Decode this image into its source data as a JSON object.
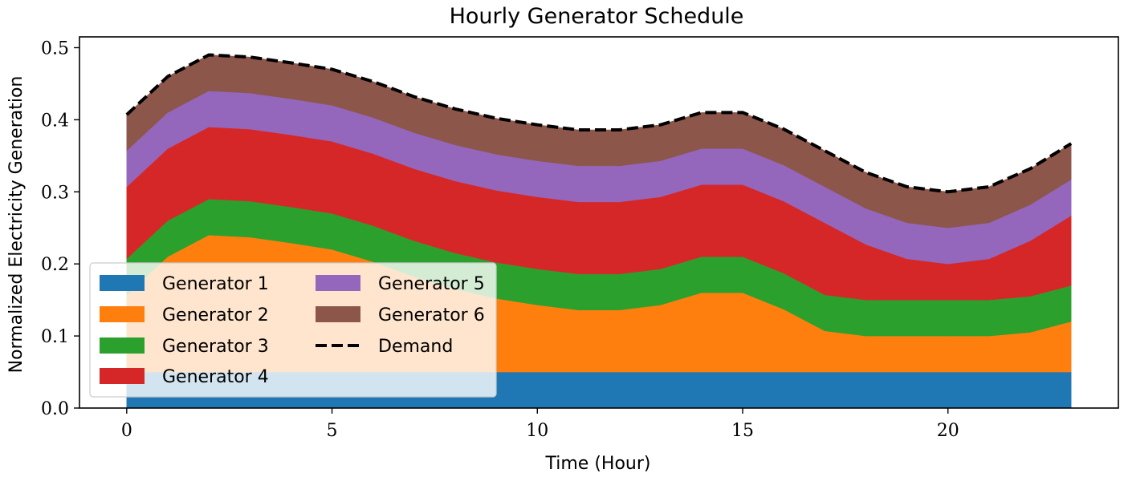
{
  "chart_data": {
    "type": "area",
    "title": "Hourly Generator Schedule",
    "xlabel": "Time (Hour)",
    "ylabel": "Normalized Electricity Generation",
    "xlim": [
      -1.15,
      24.15
    ],
    "ylim": [
      0,
      0.515
    ],
    "xticks": [
      0,
      5,
      10,
      15,
      20
    ],
    "xtick_labels": [
      "0",
      "5",
      "10",
      "15",
      "20"
    ],
    "yticks": [
      0.0,
      0.1,
      0.2,
      0.3,
      0.4,
      0.5
    ],
    "ytick_labels": [
      "0.0",
      "0.1",
      "0.2",
      "0.3",
      "0.4",
      "0.5"
    ],
    "grid": false,
    "legend_position": "lower-left",
    "stacked": true,
    "x": [
      0,
      1,
      2,
      3,
      4,
      5,
      6,
      7,
      8,
      9,
      10,
      11,
      12,
      13,
      14,
      15,
      16,
      17,
      18,
      19,
      20,
      21,
      22,
      23
    ],
    "series": [
      {
        "name": "Generator 1",
        "color": "#1f77b4",
        "values": [
          0.05,
          0.05,
          0.05,
          0.05,
          0.05,
          0.05,
          0.05,
          0.05,
          0.05,
          0.05,
          0.05,
          0.05,
          0.05,
          0.05,
          0.05,
          0.05,
          0.05,
          0.05,
          0.05,
          0.05,
          0.05,
          0.05,
          0.05,
          0.05
        ]
      },
      {
        "name": "Generator 2",
        "color": "#ff7f0e",
        "values": [
          0.107,
          0.16,
          0.19,
          0.187,
          0.179,
          0.17,
          0.153,
          0.132,
          0.115,
          0.102,
          0.093,
          0.086,
          0.086,
          0.093,
          0.11,
          0.11,
          0.087,
          0.057,
          0.05,
          0.05,
          0.05,
          0.05,
          0.055,
          0.07
        ]
      },
      {
        "name": "Generator 3",
        "color": "#2ca02c",
        "values": [
          0.05,
          0.05,
          0.05,
          0.05,
          0.05,
          0.05,
          0.05,
          0.05,
          0.05,
          0.05,
          0.05,
          0.05,
          0.05,
          0.05,
          0.05,
          0.05,
          0.05,
          0.05,
          0.05,
          0.05,
          0.05,
          0.05,
          0.05,
          0.05
        ]
      },
      {
        "name": "Generator 4",
        "color": "#d62728",
        "values": [
          0.1,
          0.1,
          0.1,
          0.1,
          0.1,
          0.1,
          0.1,
          0.1,
          0.1,
          0.1,
          0.1,
          0.1,
          0.1,
          0.1,
          0.1,
          0.1,
          0.1,
          0.1,
          0.077,
          0.057,
          0.05,
          0.057,
          0.077,
          0.097
        ]
      },
      {
        "name": "Generator 5",
        "color": "#9467bd",
        "values": [
          0.05,
          0.05,
          0.05,
          0.05,
          0.05,
          0.05,
          0.05,
          0.05,
          0.05,
          0.05,
          0.05,
          0.05,
          0.05,
          0.05,
          0.05,
          0.05,
          0.05,
          0.05,
          0.05,
          0.05,
          0.05,
          0.05,
          0.05,
          0.05
        ]
      },
      {
        "name": "Generator 6",
        "color": "#8c564b",
        "values": [
          0.05,
          0.05,
          0.05,
          0.05,
          0.05,
          0.05,
          0.05,
          0.05,
          0.05,
          0.05,
          0.05,
          0.05,
          0.05,
          0.05,
          0.05,
          0.05,
          0.05,
          0.05,
          0.05,
          0.05,
          0.05,
          0.05,
          0.05,
          0.05
        ]
      }
    ],
    "demand": {
      "name": "Demand",
      "color": "#000000",
      "values": [
        0.407,
        0.46,
        0.49,
        0.487,
        0.479,
        0.47,
        0.453,
        0.432,
        0.415,
        0.402,
        0.393,
        0.386,
        0.386,
        0.393,
        0.41,
        0.41,
        0.387,
        0.357,
        0.327,
        0.307,
        0.3,
        0.307,
        0.332,
        0.367
      ]
    }
  }
}
